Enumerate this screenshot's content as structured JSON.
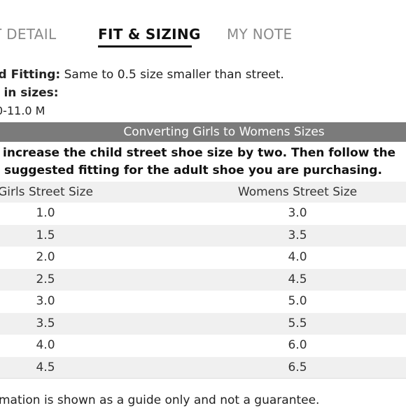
{
  "tabs": {
    "product_detail": "T DETAIL",
    "fit_sizing": "FIT & SIZING",
    "my_note": "MY NOTE"
  },
  "fit": {
    "fitting_label": "ed Fitting:",
    "fitting_value": " Same to 0.5 size smaller than street.",
    "sizes_label": "e in sizes:",
    "sizes_range": "0-11.0 M"
  },
  "table": {
    "title": "Converting Girls to Womens Sizes",
    "instruction_line1": "t increase the child street shoe size by two. Then follow the",
    "instruction_line2": "suggested fitting for the adult shoe you are purchasing.",
    "headers": [
      "Girls Street Size",
      "Womens Street Size"
    ],
    "rows": [
      [
        "1.0",
        "3.0"
      ],
      [
        "1.5",
        "3.5"
      ],
      [
        "2.0",
        "4.0"
      ],
      [
        "2.5",
        "4.5"
      ],
      [
        "3.0",
        "5.0"
      ],
      [
        "3.5",
        "5.5"
      ],
      [
        "4.0",
        "6.0"
      ],
      [
        "4.5",
        "6.5"
      ]
    ]
  },
  "footnote": "mation is shown as a guide only and not a guarantee."
}
